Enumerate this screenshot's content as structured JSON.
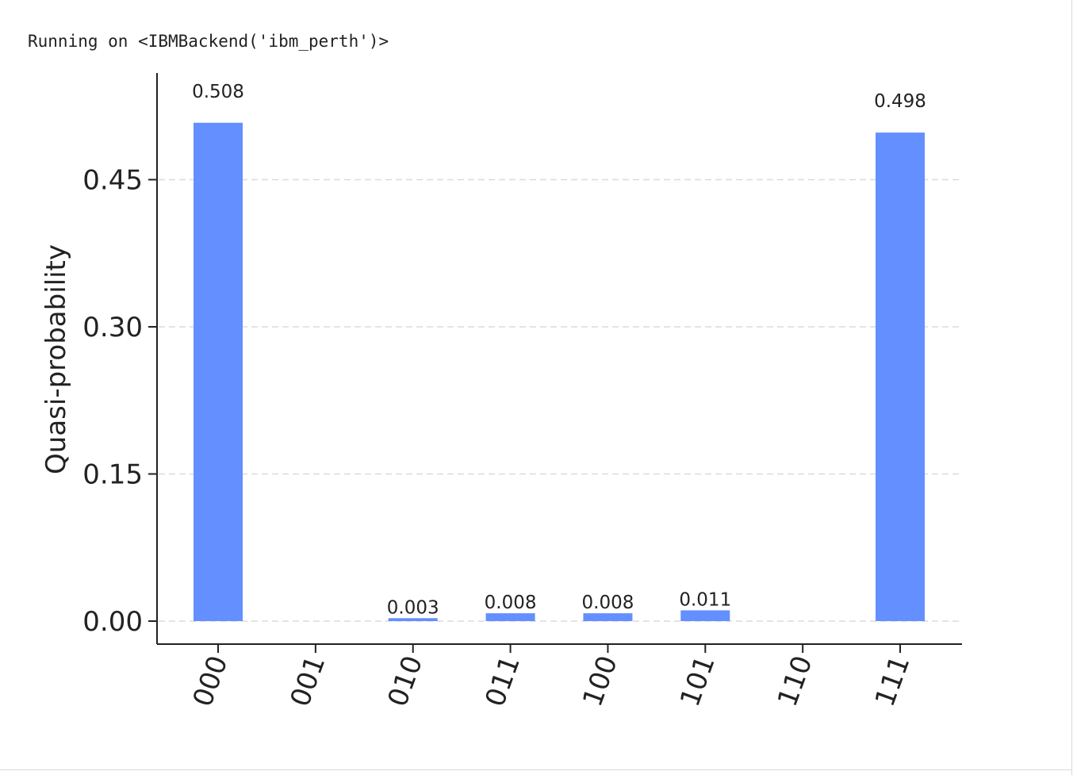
{
  "console": {
    "output_line": "Running on <IBMBackend('ibm_perth')>"
  },
  "chart_data": {
    "type": "bar",
    "title": "",
    "xlabel": "",
    "ylabel": "Quasi-probability",
    "categories": [
      "000",
      "001",
      "010",
      "011",
      "100",
      "101",
      "110",
      "111"
    ],
    "values": [
      0.508,
      0,
      0.003,
      0.008,
      0.008,
      0.011,
      0,
      0.498
    ],
    "bar_labels": [
      "0.508",
      "",
      "0.003",
      "0.008",
      "0.008",
      "0.011",
      "",
      "0.498"
    ],
    "yticks": [
      0.0,
      0.15,
      0.3,
      0.45
    ],
    "ytick_labels": [
      "0.00",
      "0.15",
      "0.30",
      "0.45"
    ],
    "ylim": [
      -0.0225,
      0.558
    ],
    "grid": "horizontal dashed",
    "bar_color": "#648fff",
    "xtick_rotation": "70 degrees"
  }
}
